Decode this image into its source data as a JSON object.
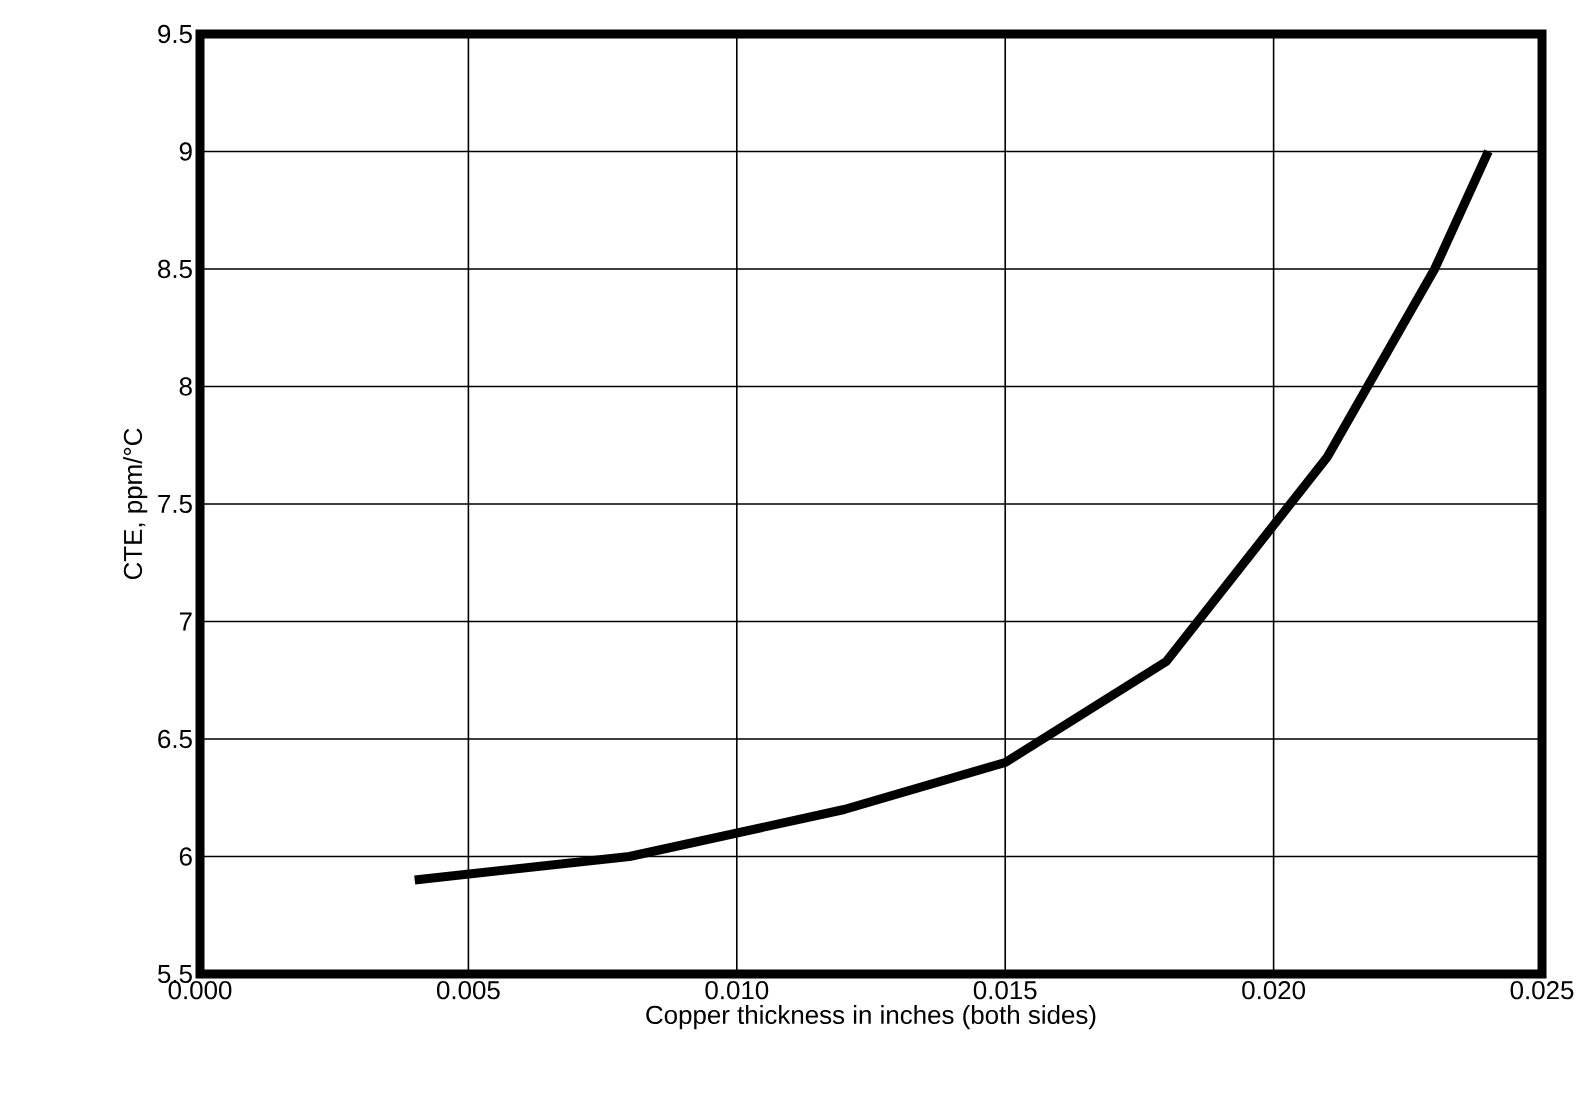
{
  "chart_data": {
    "type": "line",
    "xlabel": "Copper thickness in inches (both sides)",
    "ylabel": "CTE, ppm/°C",
    "x": [
      0.004,
      0.008,
      0.012,
      0.015,
      0.018,
      0.021,
      0.023,
      0.024
    ],
    "series": [
      {
        "color": "#000000",
        "values": [
          5.9,
          6.0,
          6.2,
          6.4,
          6.83,
          7.7,
          8.5,
          9.0
        ]
      }
    ],
    "xlim": [
      0,
      0.025
    ],
    "ylim": [
      5.5,
      9.5
    ],
    "xticks": [
      {
        "value": 0,
        "label": "0.000"
      },
      {
        "value": 0.005,
        "label": "0.005"
      },
      {
        "value": 0.01,
        "label": "0.010"
      },
      {
        "value": 0.015,
        "label": "0.015"
      },
      {
        "value": 0.02,
        "label": "0.020"
      },
      {
        "value": 0.025,
        "label": "0.025"
      }
    ],
    "yticks": [
      5.5,
      6,
      6.5,
      7,
      7.5,
      8,
      8.5,
      9,
      9.5
    ],
    "grid": true,
    "marker": "none",
    "line_style": "solid"
  }
}
